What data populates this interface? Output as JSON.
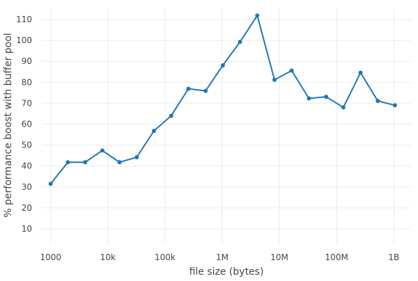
{
  "chart_data": {
    "type": "line",
    "xlabel": "file size (bytes)",
    "ylabel": "% performance boost with buffer pool",
    "x_scale": "log2",
    "xlim": [
      700,
      2000000000
    ],
    "ylim": [
      3,
      116
    ],
    "grid": true,
    "line_color": "#1f77b4",
    "grid_color": "#ebebeb",
    "x_ticks": [
      {
        "value": 1000,
        "label": "1000"
      },
      {
        "value": 10000,
        "label": "10k"
      },
      {
        "value": 100000,
        "label": "100k"
      },
      {
        "value": 1000000,
        "label": "1M"
      },
      {
        "value": 10000000,
        "label": "10M"
      },
      {
        "value": 100000000,
        "label": "100M"
      },
      {
        "value": 1000000000,
        "label": "1B"
      }
    ],
    "y_ticks": [
      {
        "value": 10,
        "label": "10"
      },
      {
        "value": 20,
        "label": "20"
      },
      {
        "value": 30,
        "label": "30"
      },
      {
        "value": 40,
        "label": "40"
      },
      {
        "value": 50,
        "label": "50"
      },
      {
        "value": 60,
        "label": "60"
      },
      {
        "value": 70,
        "label": "70"
      },
      {
        "value": 80,
        "label": "80"
      },
      {
        "value": 90,
        "label": "90"
      },
      {
        "value": 100,
        "label": "100"
      },
      {
        "value": 110,
        "label": "110"
      }
    ],
    "series": [
      {
        "x": [
          1000,
          2000,
          4000,
          8000,
          16000,
          32000,
          64000,
          128000,
          256000,
          512000,
          1024000,
          2048000,
          4096000,
          8192000,
          16384000,
          32768000,
          65536000,
          131072000,
          262144000,
          524288000,
          1048576000
        ],
        "y": [
          31.5,
          41.8,
          41.8,
          47.4,
          41.8,
          44.2,
          56.8,
          64,
          76.9,
          75.9,
          88.1,
          99.3,
          111.9,
          81.2,
          85.6,
          72.3,
          73.1,
          68,
          84.6,
          71.1,
          69
        ]
      }
    ]
  }
}
